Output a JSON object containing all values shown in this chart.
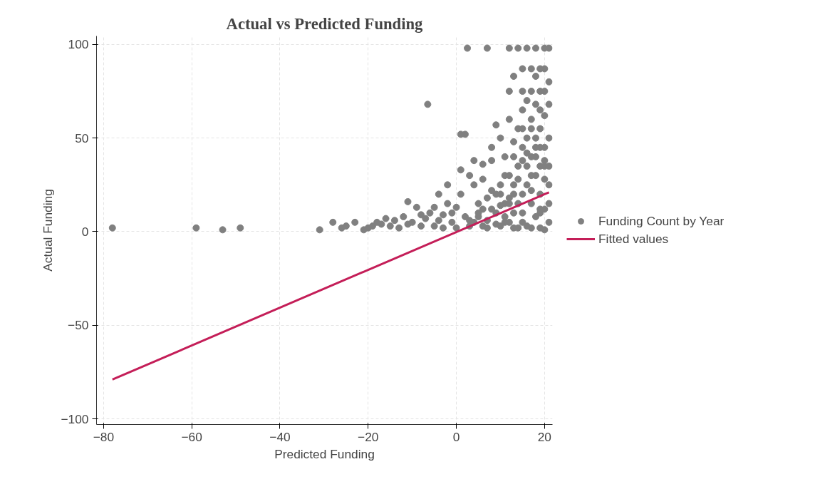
{
  "chart_data": {
    "type": "scatter",
    "title": "Actual vs Predicted Funding",
    "xlabel": "Predicted Funding",
    "ylabel": "Actual Funding",
    "xlim": [
      -81.6,
      21.8
    ],
    "ylim": [
      -103,
      104.5
    ],
    "xticks": [
      -80,
      -60,
      -40,
      -20,
      0,
      20
    ],
    "yticks": [
      -100,
      -50,
      0,
      50,
      100
    ],
    "grid": true,
    "legend": "right",
    "series": [
      {
        "name": "Funding Count by Year",
        "type": "scatter",
        "marker": "circle",
        "color": "#808080",
        "x": [
          -78,
          -59,
          -53,
          -49,
          -31,
          -28,
          -26,
          -25,
          -23,
          -21,
          -20,
          -19,
          -18,
          -17,
          -16,
          -15,
          -14,
          -13,
          -12,
          -11,
          -11,
          -10,
          -9,
          -8,
          -8,
          -7,
          -6,
          -6.5,
          -5,
          -5,
          -4,
          -4,
          -3,
          -3,
          -2,
          -2,
          -1,
          -1,
          0,
          0,
          1,
          1,
          1,
          2,
          2.5,
          3,
          3,
          4,
          4,
          5,
          5,
          6,
          6,
          7,
          7,
          7,
          8,
          8,
          9,
          9,
          10,
          10,
          10,
          11,
          11,
          12,
          12,
          12,
          12,
          12,
          13,
          13,
          13,
          14,
          14,
          14,
          14,
          15,
          15,
          15,
          15,
          15,
          16,
          16,
          16,
          16,
          16,
          17,
          17,
          17,
          17,
          17,
          18,
          18,
          18,
          18,
          18,
          18,
          19,
          19,
          19,
          19,
          19,
          19,
          20,
          20,
          20,
          20,
          20,
          20,
          20,
          20,
          21,
          21,
          21,
          21,
          2,
          4,
          6,
          8,
          9,
          11,
          12,
          13,
          14,
          15,
          16,
          17,
          18,
          19,
          20,
          21,
          3,
          5,
          7,
          9,
          10,
          11,
          13,
          14,
          15,
          16,
          17,
          18,
          19,
          20,
          21,
          6,
          8,
          10,
          12,
          13,
          15,
          17,
          19,
          21,
          11,
          13,
          15,
          17,
          19,
          21
        ],
        "values": [
          2,
          2,
          1,
          2,
          1,
          5,
          2,
          3,
          5,
          1,
          2,
          3,
          5,
          4,
          7,
          3,
          6,
          2,
          8,
          16,
          4,
          5,
          13,
          3,
          9,
          7,
          10,
          68,
          3,
          13,
          6,
          20,
          9,
          2,
          15,
          25,
          10,
          5,
          2,
          13,
          20,
          33,
          52,
          52,
          98,
          3,
          30,
          25,
          38,
          8,
          15,
          36,
          28,
          98,
          2,
          18,
          45,
          38,
          10,
          57,
          25,
          3,
          50,
          40,
          15,
          75,
          98,
          60,
          30,
          5,
          83,
          48,
          20,
          98,
          55,
          35,
          2,
          87,
          75,
          65,
          45,
          10,
          98,
          70,
          50,
          25,
          3,
          87,
          75,
          60,
          40,
          15,
          98,
          83,
          68,
          50,
          30,
          8,
          87,
          75,
          55,
          35,
          20,
          2,
          98,
          87,
          75,
          62,
          45,
          28,
          12,
          1,
          98,
          80,
          50,
          5,
          8,
          5,
          3,
          12,
          20,
          8,
          15,
          10,
          28,
          20,
          35,
          30,
          40,
          45,
          38,
          25,
          6,
          10,
          6,
          4,
          14,
          30,
          25,
          15,
          55,
          42,
          22,
          45,
          12,
          35,
          15,
          12,
          22,
          20,
          18,
          40,
          38,
          55,
          65,
          68,
          5,
          2,
          5,
          2,
          10,
          35
        ]
      },
      {
        "name": "Fitted values",
        "type": "line",
        "color": "#c41e58",
        "line_style": "solid",
        "x": [
          -78,
          21
        ],
        "values": [
          -79,
          21
        ]
      }
    ]
  }
}
